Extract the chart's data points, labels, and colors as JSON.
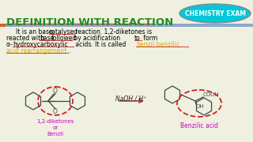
{
  "bg_color": "#f0f0e0",
  "header_text": "DEFINITION WITH REACTION",
  "header_text_color": "#228B22",
  "header_underline_color": "#cc4444",
  "badge_text": "CHEMISTRY EXAM",
  "badge_bg": "#00c8d8",
  "badge_border": "#888888",
  "body_text_color": "#000000",
  "yellow_text_color": "#ddaa00",
  "arrow_color": "#aa3333",
  "reaction_label": "NaOH / H⁺",
  "magenta_color": "#cc00cc",
  "struct_color": "#444444",
  "red_oval_color": "#cc2222",
  "blue_bar_color": "#88aacc",
  "orange_bar_color": "#cc6622",
  "left_label": "1,2-diketones\nor\nBenzil",
  "right_label": "Benzilic acid"
}
